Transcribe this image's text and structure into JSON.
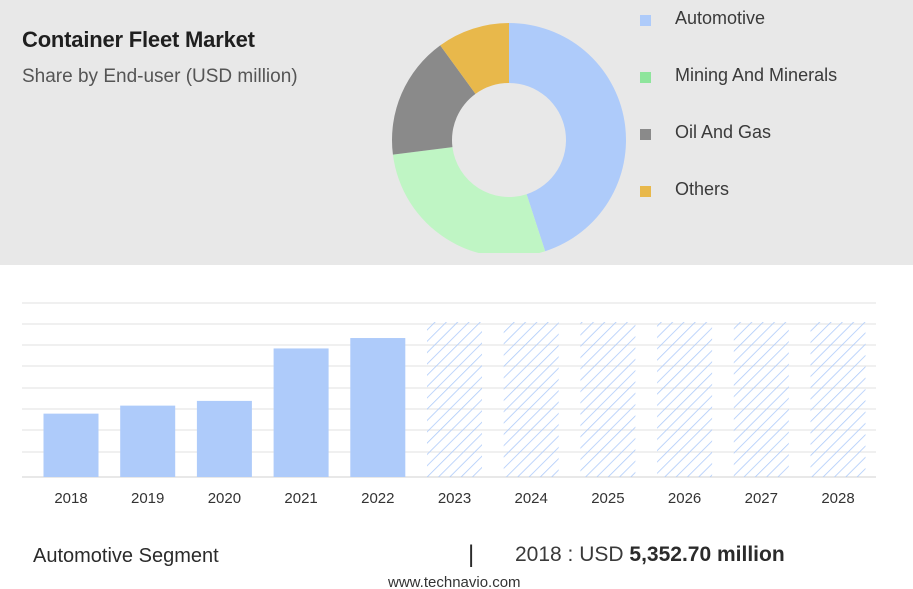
{
  "header": {
    "title": "Container Fleet Market",
    "subtitle": "Share by End-user (USD million)"
  },
  "legend": [
    {
      "label": "Automotive",
      "color": "#aecbfa"
    },
    {
      "label": "Mining And Minerals",
      "color": "#8ee59c"
    },
    {
      "label": "Oil And Gas",
      "color": "#8a8a8a"
    },
    {
      "label": "Others",
      "color": "#e8b84b"
    }
  ],
  "chart_data": [
    {
      "type": "pie",
      "subtype": "donut",
      "title": "Share by End-user (USD million)",
      "slices": [
        {
          "label": "Automotive",
          "value": 45,
          "color": "#aecbfa"
        },
        {
          "label": "Mining And Minerals",
          "value": 28,
          "color": "#bff5c4"
        },
        {
          "label": "Oil And Gas",
          "value": 17,
          "color": "#8a8a8a"
        },
        {
          "label": "Others",
          "value": 10,
          "color": "#e8b84b"
        }
      ]
    },
    {
      "type": "bar",
      "series_name": "Automotive Segment",
      "categories": [
        "2018",
        "2019",
        "2020",
        "2021",
        "2022",
        "2023",
        "2024",
        "2025",
        "2026",
        "2027",
        "2028"
      ],
      "values": [
        5352.7,
        6030,
        6430,
        10860,
        11740,
        null,
        null,
        null,
        null,
        null,
        null
      ],
      "forecast_categories": [
        "2023",
        "2024",
        "2025",
        "2026",
        "2027",
        "2028"
      ],
      "bar_color": "#aecbfa",
      "forecast_color": "#aecbfa",
      "ylim": [
        0,
        14700
      ],
      "grid": true
    }
  ],
  "footer": {
    "segment_label": "Automotive Segment",
    "separator": "|",
    "value_prefix": "2018 : USD",
    "value_bold": "5,352.70 million",
    "watermark": "www.technavio.com"
  }
}
